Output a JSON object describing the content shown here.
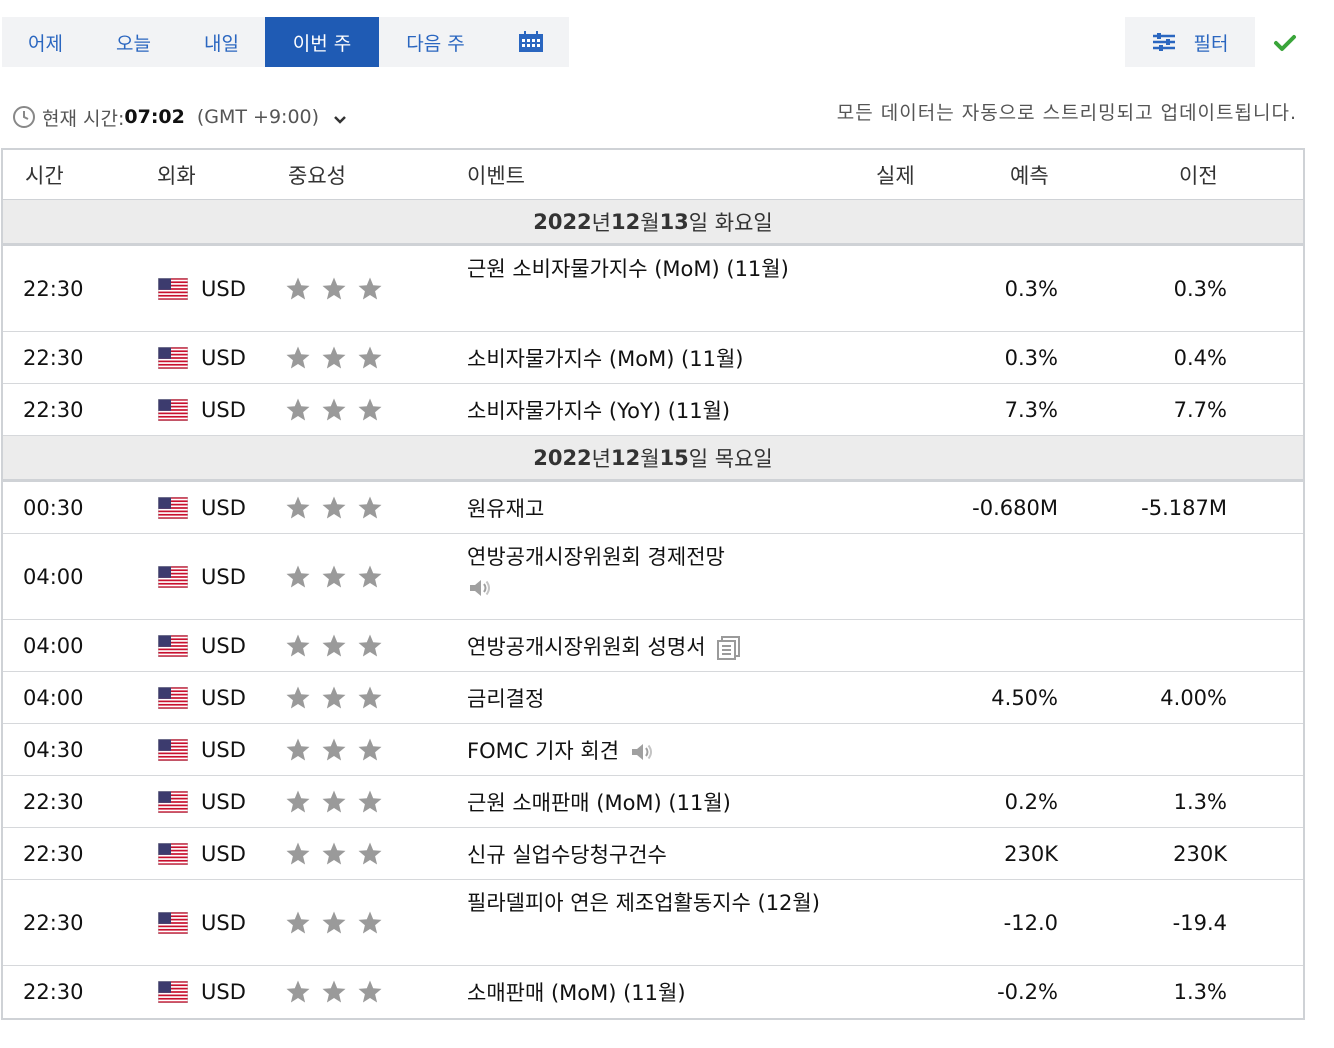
{
  "tabs": [
    {
      "label": "어제"
    },
    {
      "label": "오늘"
    },
    {
      "label": "내일"
    },
    {
      "label": "이번 주",
      "active": true
    },
    {
      "label": "다음 주"
    }
  ],
  "icons": {
    "calendar": "calendar-icon",
    "filter": "sliders-icon",
    "check": "check-icon",
    "clock": "clock-icon",
    "chevron": "chevron-down-icon",
    "flag": "us-flag-icon",
    "star": "star-icon",
    "speaker": "speaker-icon",
    "document": "document-icon"
  },
  "filter": {
    "label": "필터"
  },
  "time": {
    "prefix": "현재 시간:",
    "value": "07:02",
    "timezone": "(GMT +9:00)"
  },
  "stream_note": "모든 데이터는 자동으로 스트리밍되고 업데이트됩니다.",
  "colors": {
    "accent": "#1f5bb4",
    "link": "#2a66c0",
    "check": "#3aa53a",
    "star": "#9a9a9a"
  },
  "table": {
    "headers": {
      "time": "시간",
      "currency": "외화",
      "importance": "중요성",
      "event": "이벤트",
      "actual": "실제",
      "forecast": "예측",
      "previous": "이전"
    },
    "days": [
      {
        "date_parts": [
          "2022",
          "년 ",
          "12",
          "월 ",
          "13",
          "일 화요일"
        ],
        "rows": [
          {
            "time": "22:30",
            "currency": "USD",
            "stars": 3,
            "event": "근원 소비자물가지수 (MoM) (11월)",
            "actual": "",
            "forecast": "0.3%",
            "previous": "0.3%",
            "height": 86
          },
          {
            "time": "22:30",
            "currency": "USD",
            "stars": 3,
            "event": "소비자물가지수 (MoM) (11월)",
            "actual": "",
            "forecast": "0.3%",
            "previous": "0.4%",
            "height": 52
          },
          {
            "time": "22:30",
            "currency": "USD",
            "stars": 3,
            "event": "소비자물가지수 (YoY) (11월)",
            "actual": "",
            "forecast": "7.3%",
            "previous": "7.7%",
            "height": 52
          }
        ]
      },
      {
        "date_parts": [
          "2022",
          "년 ",
          "12",
          "월 ",
          "15",
          "일 목요일"
        ],
        "rows": [
          {
            "time": "00:30",
            "currency": "USD",
            "stars": 3,
            "event": "원유재고",
            "actual": "",
            "forecast": "-0.680M",
            "previous": "-5.187M",
            "height": 52
          },
          {
            "time": "04:00",
            "currency": "USD",
            "stars": 3,
            "event": "연방공개시장위원회 경제전망",
            "actual": "",
            "forecast": "",
            "previous": "",
            "icon": "speaker-block",
            "height": 86
          },
          {
            "time": "04:00",
            "currency": "USD",
            "stars": 3,
            "event": "연방공개시장위원회 성명서",
            "actual": "",
            "forecast": "",
            "previous": "",
            "icon": "document",
            "height": 52
          },
          {
            "time": "04:00",
            "currency": "USD",
            "stars": 3,
            "event": "금리결정",
            "actual": "",
            "forecast": "4.50%",
            "previous": "4.00%",
            "height": 52
          },
          {
            "time": "04:30",
            "currency": "USD",
            "stars": 3,
            "event": "FOMC 기자 회견",
            "actual": "",
            "forecast": "",
            "previous": "",
            "icon": "speaker",
            "height": 52
          },
          {
            "time": "22:30",
            "currency": "USD",
            "stars": 3,
            "event": "근원 소매판매 (MoM) (11월)",
            "actual": "",
            "forecast": "0.2%",
            "previous": "1.3%",
            "height": 52
          },
          {
            "time": "22:30",
            "currency": "USD",
            "stars": 3,
            "event": "신규 실업수당청구건수",
            "actual": "",
            "forecast": "230K",
            "previous": "230K",
            "height": 52
          },
          {
            "time": "22:30",
            "currency": "USD",
            "stars": 3,
            "event": "필라델피아 연은 제조업활동지수 (12월)",
            "actual": "",
            "forecast": "-12.0",
            "previous": "-19.4",
            "height": 86
          },
          {
            "time": "22:30",
            "currency": "USD",
            "stars": 3,
            "event": "소매판매 (MoM) (11월)",
            "actual": "",
            "forecast": "-0.2%",
            "previous": "1.3%",
            "height": 52
          }
        ]
      }
    ]
  }
}
